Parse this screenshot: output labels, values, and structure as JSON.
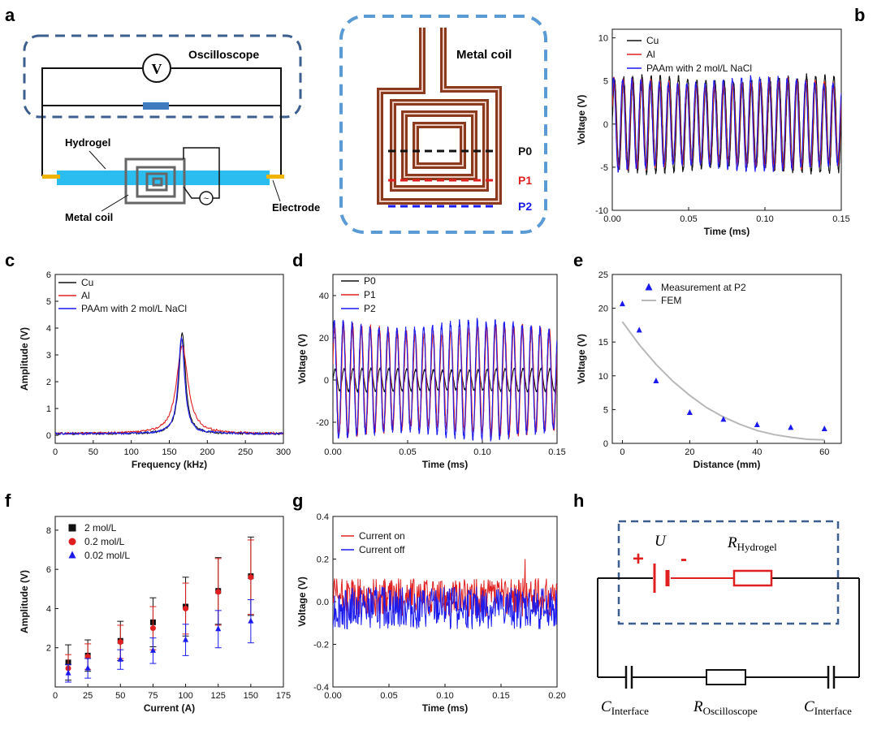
{
  "panels": {
    "a": {
      "letter": "a",
      "oscilloscope": "Oscilloscope",
      "meter": "V",
      "hydrogel": "Hydrogel",
      "metal_coil": "Metal coil",
      "electrode": "Electrode",
      "coil_title": "Metal coil",
      "probes": [
        "P0",
        "P1",
        "P2"
      ]
    },
    "b": {
      "letter": "b"
    },
    "c": {
      "letter": "c"
    },
    "d": {
      "letter": "d"
    },
    "e": {
      "letter": "e"
    },
    "f": {
      "letter": "f"
    },
    "g": {
      "letter": "g"
    },
    "h": {
      "letter": "h",
      "U": "U",
      "R_main": "R",
      "R_sub": "Hydrogel",
      "C_main": "C",
      "C_sub": "Interface",
      "Rosc_sub": "Oscilloscope",
      "plus": "+",
      "minus": "-"
    }
  },
  "colors": {
    "black": "#111111",
    "red": "#e02020",
    "blue": "#1a1aee",
    "gray": "#b8b8b8",
    "coil": "#8b3a1e",
    "gel": "#2bbcf0",
    "dash": "#3d5f8f",
    "dash2": "#5b9bd5",
    "electrode": "#f0b400"
  },
  "chart_data": [
    {
      "id": "b",
      "type": "line",
      "xlabel": "Time (ms)",
      "ylabel": "Voltage (V)",
      "xlim": [
        0,
        0.15
      ],
      "ylim": [
        -10,
        11
      ],
      "xticks": [
        "0.00",
        "0.05",
        "0.10",
        "0.15"
      ],
      "xtick_values": [
        0,
        0.05,
        0.1,
        0.15
      ],
      "yticks": [
        "-10",
        "-5",
        "0",
        "5",
        "10"
      ],
      "ytick_values": [
        -10,
        -5,
        0,
        5,
        10
      ],
      "series": [
        {
          "name": "Cu",
          "color": "#111111",
          "freq_cycles_per_ms": 167,
          "amplitude": 5.2
        },
        {
          "name": "Al",
          "color": "#e02020",
          "freq_cycles_per_ms": 167,
          "amplitude": 4.8
        },
        {
          "name": "PAAm with 2 mol/L NaCl",
          "color": "#1a1aee",
          "freq_cycles_per_ms": 167,
          "amplitude": 5.0
        }
      ]
    },
    {
      "id": "c",
      "type": "line",
      "xlabel": "Frequency (kHz)",
      "ylabel": "Amplitude (V)",
      "xlim": [
        0,
        300
      ],
      "ylim": [
        -0.3,
        6
      ],
      "xticks": [
        "0",
        "50",
        "100",
        "150",
        "200",
        "250",
        "300"
      ],
      "xtick_values": [
        0,
        50,
        100,
        150,
        200,
        250,
        300
      ],
      "yticks": [
        "0",
        "1",
        "2",
        "3",
        "4",
        "5",
        "6"
      ],
      "ytick_values": [
        0,
        1,
        2,
        3,
        4,
        5,
        6
      ],
      "series": [
        {
          "name": "Cu",
          "color": "#111111",
          "peak_x": 167,
          "peak": 3.8,
          "width": 5
        },
        {
          "name": "Al",
          "color": "#e02020",
          "peak_x": 167,
          "peak": 3.3,
          "width": 9
        },
        {
          "name": "PAAm with 2 mol/L NaCl",
          "color": "#1a1aee",
          "peak_x": 166,
          "peak": 3.6,
          "width": 5
        }
      ]
    },
    {
      "id": "d",
      "type": "line",
      "xlabel": "Time (ms)",
      "ylabel": "Voltage (V)",
      "xlim": [
        0,
        0.15
      ],
      "ylim": [
        -30,
        50
      ],
      "xticks": [
        "0.00",
        "0.05",
        "0.10",
        "0.15"
      ],
      "xtick_values": [
        0,
        0.05,
        0.1,
        0.15
      ],
      "yticks": [
        "-20",
        "0",
        "20",
        "40"
      ],
      "ytick_values": [
        -20,
        0,
        20,
        40
      ],
      "series": [
        {
          "name": "P0",
          "color": "#111111",
          "freq_cycles_per_ms": 167,
          "amplitude": 5
        },
        {
          "name": "P1",
          "color": "#e02020",
          "freq_cycles_per_ms": 167,
          "amplitude": 24
        },
        {
          "name": "P2",
          "color": "#1a1aee",
          "freq_cycles_per_ms": 167,
          "amplitude": 26
        }
      ]
    },
    {
      "id": "e",
      "type": "scatter",
      "xlabel": "Distance (mm)",
      "ylabel": "Voltage (V)",
      "xlim": [
        -3,
        65
      ],
      "ylim": [
        0,
        25
      ],
      "xticks": [
        "0",
        "20",
        "40",
        "60"
      ],
      "xtick_values": [
        0,
        20,
        40,
        60
      ],
      "yticks": [
        "0",
        "5",
        "10",
        "15",
        "20",
        "25"
      ],
      "ytick_values": [
        0,
        5,
        10,
        15,
        20,
        25
      ],
      "series": [
        {
          "name": "Measurement at P2",
          "color": "#1a1aee",
          "x": [
            0,
            5,
            10,
            20,
            30,
            40,
            50,
            60
          ],
          "y": [
            20.6,
            16.7,
            9.2,
            4.5,
            3.5,
            2.7,
            2.3,
            2.1
          ]
        },
        {
          "name": "FEM",
          "color": "#b8b8b8",
          "x": [
            0,
            5,
            10,
            15,
            20,
            25,
            30,
            35,
            40,
            45,
            50,
            55,
            60
          ],
          "y": [
            18,
            14.6,
            11.7,
            9.2,
            7.1,
            5.3,
            3.9,
            2.8,
            1.9,
            1.3,
            0.9,
            0.6,
            0.5
          ]
        }
      ]
    },
    {
      "id": "f",
      "type": "scatter",
      "xlabel": "Current (A)",
      "ylabel": "Amplitude (V)",
      "xlim": [
        0,
        175
      ],
      "ylim": [
        0,
        8.7
      ],
      "xticks": [
        "0",
        "25",
        "50",
        "75",
        "100",
        "125",
        "150",
        "175"
      ],
      "xtick_values": [
        0,
        25,
        50,
        75,
        100,
        125,
        150,
        175
      ],
      "yticks": [
        "2",
        "4",
        "6",
        "8"
      ],
      "ytick_values": [
        2,
        4,
        6,
        8
      ],
      "series": [
        {
          "name": "2 mol/L",
          "color": "#111111",
          "marker": "square",
          "x": [
            10,
            25,
            50,
            75,
            100,
            125,
            150
          ],
          "y": [
            1.25,
            1.6,
            2.35,
            3.3,
            4.1,
            4.9,
            5.65
          ],
          "err": [
            0.9,
            0.8,
            1.0,
            1.25,
            1.5,
            1.7,
            2.0
          ]
        },
        {
          "name": "0.2 mol/L",
          "color": "#e02020",
          "marker": "circle",
          "x": [
            10,
            25,
            50,
            75,
            100,
            125,
            150
          ],
          "y": [
            0.95,
            1.55,
            2.3,
            3.0,
            4.0,
            4.85,
            5.6
          ],
          "err": [
            0.7,
            0.65,
            0.85,
            1.1,
            1.3,
            1.7,
            1.9
          ]
        },
        {
          "name": "0.02 mol/L",
          "color": "#1a1aee",
          "marker": "triangle",
          "x": [
            10,
            25,
            50,
            75,
            100,
            125,
            150
          ],
          "y": [
            0.7,
            0.95,
            1.4,
            1.85,
            2.4,
            2.95,
            3.35
          ],
          "err": [
            0.45,
            0.5,
            0.5,
            0.65,
            0.8,
            0.95,
            1.1
          ]
        }
      ]
    },
    {
      "id": "g",
      "type": "line",
      "xlabel": "Time (ms)",
      "ylabel": "Voltage (V)",
      "xlim": [
        0,
        0.2
      ],
      "ylim": [
        -0.4,
        0.4
      ],
      "xticks": [
        "0.00",
        "0.05",
        "0.10",
        "0.15",
        "0.20"
      ],
      "xtick_values": [
        0,
        0.05,
        0.1,
        0.15,
        0.2
      ],
      "yticks": [
        "-0.4",
        "-0.2",
        "0.0",
        "0.2",
        "0.4"
      ],
      "ytick_values": [
        -0.4,
        -0.2,
        0,
        0.2,
        0.4
      ],
      "series": [
        {
          "name": "Current on",
          "color": "#e02020",
          "offset": 0.02,
          "noise": 0.09
        },
        {
          "name": "Current off",
          "color": "#1a1aee",
          "offset": -0.03,
          "noise": 0.1
        }
      ]
    }
  ]
}
